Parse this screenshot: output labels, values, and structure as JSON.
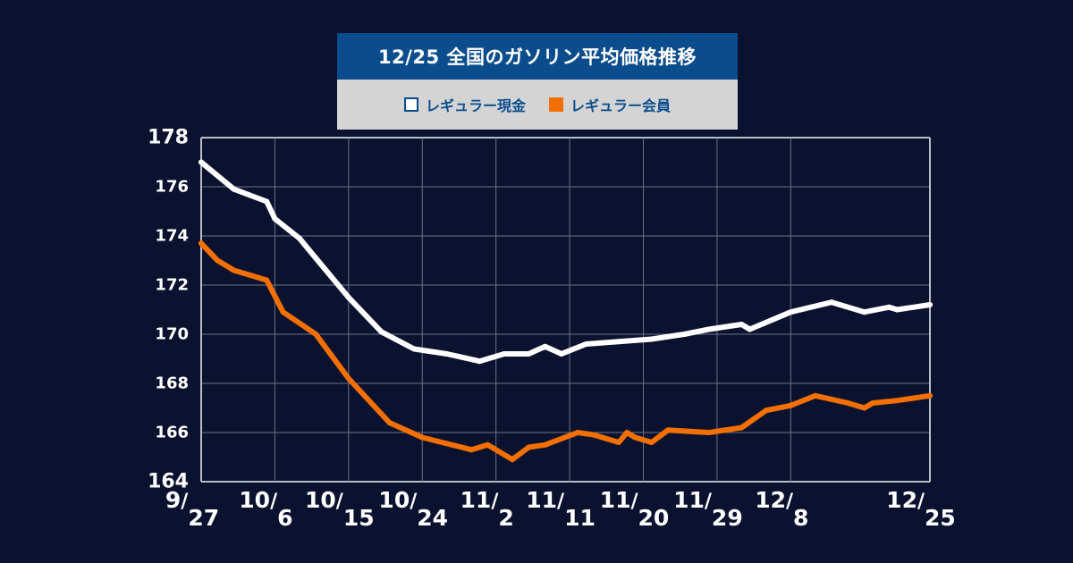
{
  "chart_data": {
    "type": "line",
    "title": "12/25 全国のガソリン平均価格推移",
    "ylim": [
      164,
      178
    ],
    "yticks": [
      164,
      166,
      168,
      170,
      172,
      174,
      176,
      178
    ],
    "x_domain": [
      "2023-09-27",
      "2023-12-25"
    ],
    "xticks": [
      {
        "date": "2023-09-27",
        "month": "9",
        "day": "27"
      },
      {
        "date": "2023-10-06",
        "month": "10",
        "day": "6"
      },
      {
        "date": "2023-10-15",
        "month": "10",
        "day": "15"
      },
      {
        "date": "2023-10-24",
        "month": "10",
        "day": "24"
      },
      {
        "date": "2023-11-02",
        "month": "11",
        "day": "2"
      },
      {
        "date": "2023-11-11",
        "month": "11",
        "day": "11"
      },
      {
        "date": "2023-11-20",
        "month": "11",
        "day": "20"
      },
      {
        "date": "2023-11-29",
        "month": "11",
        "day": "29"
      },
      {
        "date": "2023-12-08",
        "month": "12",
        "day": "8"
      },
      {
        "date": "2023-12-25",
        "month": "12",
        "day": "25"
      }
    ],
    "grid": true,
    "legend": "top",
    "series": [
      {
        "name": "レギュラー現金",
        "color": "#ffffff",
        "x": [
          "2023-09-27",
          "2023-10-01",
          "2023-10-05",
          "2023-10-06",
          "2023-10-09",
          "2023-10-11",
          "2023-10-15",
          "2023-10-19",
          "2023-10-23",
          "2023-10-27",
          "2023-10-31",
          "2023-11-01",
          "2023-11-03",
          "2023-11-06",
          "2023-11-08",
          "2023-11-10",
          "2023-11-13",
          "2023-11-17",
          "2023-11-21",
          "2023-11-25",
          "2023-11-28",
          "2023-12-02",
          "2023-12-03",
          "2023-12-08",
          "2023-12-13",
          "2023-12-17",
          "2023-12-20",
          "2023-12-21",
          "2023-12-25"
        ],
        "values": [
          177.0,
          175.9,
          175.4,
          174.7,
          173.9,
          173.1,
          171.5,
          170.1,
          169.4,
          169.2,
          168.9,
          169.0,
          169.2,
          169.2,
          169.5,
          169.2,
          169.6,
          169.7,
          169.8,
          170.0,
          170.2,
          170.4,
          170.2,
          170.9,
          171.3,
          170.9,
          171.1,
          171.0,
          171.2
        ]
      },
      {
        "name": "レギュラー会員",
        "color": "#f37000",
        "x": [
          "2023-09-27",
          "2023-09-29",
          "2023-10-01",
          "2023-10-05",
          "2023-10-07",
          "2023-10-11",
          "2023-10-15",
          "2023-10-20",
          "2023-10-24",
          "2023-10-30",
          "2023-11-01",
          "2023-11-04",
          "2023-11-06",
          "2023-11-08",
          "2023-11-12",
          "2023-11-14",
          "2023-11-17",
          "2023-11-18",
          "2023-11-19",
          "2023-11-21",
          "2023-11-23",
          "2023-11-28",
          "2023-12-02",
          "2023-12-05",
          "2023-12-08",
          "2023-12-11",
          "2023-12-15",
          "2023-12-17",
          "2023-12-18",
          "2023-12-21",
          "2023-12-25"
        ],
        "values": [
          173.7,
          173.0,
          172.6,
          172.2,
          170.9,
          170.0,
          168.2,
          166.4,
          165.8,
          165.3,
          165.5,
          164.9,
          165.4,
          165.5,
          166.0,
          165.9,
          165.6,
          166.0,
          165.8,
          165.6,
          166.1,
          166.0,
          166.2,
          166.9,
          167.1,
          167.5,
          167.2,
          167.0,
          167.2,
          167.3,
          167.5
        ]
      }
    ]
  }
}
